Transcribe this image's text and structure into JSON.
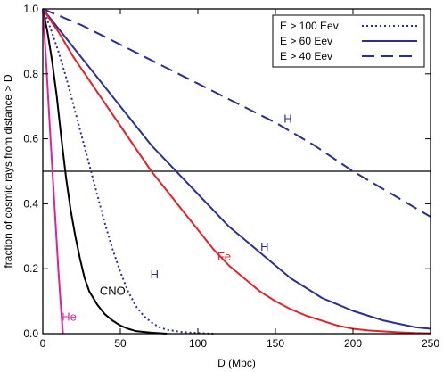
{
  "chart_data": {
    "type": "line",
    "title": "",
    "xlabel": "D (Mpc)",
    "ylabel": "fraction of cosmic rays from distance > D",
    "xlim": [
      0,
      250
    ],
    "ylim": [
      0,
      1
    ],
    "xticks": [
      0,
      50,
      100,
      150,
      200,
      250
    ],
    "yticks": [
      0.0,
      0.2,
      0.4,
      0.6,
      0.8,
      1.0
    ],
    "xtick_labels": [
      "0",
      "50",
      "100",
      "150",
      "200",
      "250"
    ],
    "ytick_labels": [
      "0.0",
      "0.2",
      "0.4",
      "0.6",
      "0.8",
      "1.0"
    ],
    "grid": false,
    "legend_position": "top-right",
    "legend": [
      {
        "label": "E > 100 Eev",
        "style": "dotted",
        "color": "#2b2f8e"
      },
      {
        "label": "E > 60 Eev",
        "style": "solid",
        "color": "#2b2f8e"
      },
      {
        "label": "E > 40 Eev",
        "style": "dashed",
        "color": "#2b2f8e"
      }
    ],
    "hline": {
      "y": 0.5,
      "color": "#000000"
    },
    "series": [
      {
        "label": "H",
        "energy": "E > 40 Eev",
        "color": "#2b2f8e",
        "style": "dashed",
        "points": [
          [
            0,
            1.0
          ],
          [
            25,
            0.95
          ],
          [
            50,
            0.89
          ],
          [
            75,
            0.83
          ],
          [
            100,
            0.77
          ],
          [
            125,
            0.71
          ],
          [
            150,
            0.65
          ],
          [
            175,
            0.58
          ],
          [
            200,
            0.5
          ],
          [
            225,
            0.43
          ],
          [
            250,
            0.36
          ]
        ]
      },
      {
        "label": "H",
        "energy": "E > 60 Eev",
        "color": "#2b2f8e",
        "style": "solid",
        "points": [
          [
            0,
            1.0
          ],
          [
            10,
            0.94
          ],
          [
            20,
            0.88
          ],
          [
            30,
            0.82
          ],
          [
            40,
            0.76
          ],
          [
            50,
            0.7
          ],
          [
            60,
            0.64
          ],
          [
            70,
            0.58
          ],
          [
            80,
            0.53
          ],
          [
            90,
            0.48
          ],
          [
            100,
            0.43
          ],
          [
            110,
            0.38
          ],
          [
            120,
            0.33
          ],
          [
            130,
            0.29
          ],
          [
            140,
            0.25
          ],
          [
            150,
            0.21
          ],
          [
            160,
            0.17
          ],
          [
            170,
            0.14
          ],
          [
            180,
            0.11
          ],
          [
            190,
            0.09
          ],
          [
            200,
            0.07
          ],
          [
            210,
            0.055
          ],
          [
            220,
            0.04
          ],
          [
            230,
            0.03
          ],
          [
            240,
            0.02
          ],
          [
            250,
            0.015
          ]
        ]
      },
      {
        "label": "Fe",
        "energy": "E > 60 Eev",
        "color": "#e0242a",
        "style": "solid",
        "points": [
          [
            0,
            1.0
          ],
          [
            10,
            0.93
          ],
          [
            20,
            0.85
          ],
          [
            30,
            0.78
          ],
          [
            40,
            0.71
          ],
          [
            50,
            0.64
          ],
          [
            60,
            0.57
          ],
          [
            70,
            0.5
          ],
          [
            80,
            0.44
          ],
          [
            90,
            0.38
          ],
          [
            100,
            0.32
          ],
          [
            110,
            0.26
          ],
          [
            120,
            0.21
          ],
          [
            130,
            0.17
          ],
          [
            140,
            0.13
          ],
          [
            150,
            0.1
          ],
          [
            160,
            0.075
          ],
          [
            170,
            0.055
          ],
          [
            180,
            0.04
          ],
          [
            190,
            0.025
          ],
          [
            200,
            0.015
          ],
          [
            210,
            0.01
          ],
          [
            220,
            0.007
          ],
          [
            230,
            0.004
          ],
          [
            240,
            0.002
          ],
          [
            250,
            0.001
          ]
        ]
      },
      {
        "label": "H",
        "energy": "E > 100 Eev",
        "color": "#2b2f8e",
        "style": "dotted",
        "points": [
          [
            0,
            1.0
          ],
          [
            5,
            0.94
          ],
          [
            10,
            0.87
          ],
          [
            15,
            0.79
          ],
          [
            20,
            0.7
          ],
          [
            25,
            0.61
          ],
          [
            30,
            0.52
          ],
          [
            35,
            0.43
          ],
          [
            40,
            0.34
          ],
          [
            45,
            0.26
          ],
          [
            50,
            0.19
          ],
          [
            55,
            0.13
          ],
          [
            60,
            0.085
          ],
          [
            65,
            0.055
          ],
          [
            70,
            0.035
          ],
          [
            75,
            0.02
          ],
          [
            80,
            0.012
          ],
          [
            90,
            0.005
          ],
          [
            100,
            0.002
          ],
          [
            110,
            0.0
          ]
        ]
      },
      {
        "label": "CNO",
        "energy": "E > 60 Eev",
        "color": "#000000",
        "style": "solid",
        "points": [
          [
            0,
            1.0
          ],
          [
            3,
            0.93
          ],
          [
            6,
            0.84
          ],
          [
            9,
            0.73
          ],
          [
            12,
            0.6
          ],
          [
            15,
            0.48
          ],
          [
            18,
            0.38
          ],
          [
            21,
            0.3
          ],
          [
            24,
            0.23
          ],
          [
            27,
            0.17
          ],
          [
            30,
            0.13
          ],
          [
            35,
            0.09
          ],
          [
            40,
            0.06
          ],
          [
            45,
            0.04
          ],
          [
            50,
            0.025
          ],
          [
            55,
            0.015
          ],
          [
            60,
            0.008
          ],
          [
            70,
            0.003
          ],
          [
            80,
            0.0
          ]
        ]
      },
      {
        "label": "He",
        "energy": "E > 60 Eev",
        "color": "#e0209a",
        "style": "solid",
        "points": [
          [
            0,
            1.0
          ],
          [
            2,
            0.85
          ],
          [
            4,
            0.68
          ],
          [
            6,
            0.52
          ],
          [
            8,
            0.36
          ],
          [
            10,
            0.2
          ],
          [
            12,
            0.06
          ],
          [
            13,
            0.0
          ]
        ]
      }
    ],
    "annotations": [
      {
        "text": "H",
        "x": 158,
        "y": 0.65,
        "color": "#2b2f8e"
      },
      {
        "text": "H",
        "x": 143,
        "y": 0.255,
        "color": "#2b2f8e"
      },
      {
        "text": "Fe",
        "x": 117,
        "y": 0.225,
        "color": "#e0242a"
      },
      {
        "text": "H",
        "x": 72,
        "y": 0.17,
        "color": "#2b2f8e"
      },
      {
        "text": "CNO",
        "x": 45,
        "y": 0.12,
        "color": "#000000"
      },
      {
        "text": "He",
        "x": 17,
        "y": 0.04,
        "color": "#e0209a"
      }
    ]
  }
}
